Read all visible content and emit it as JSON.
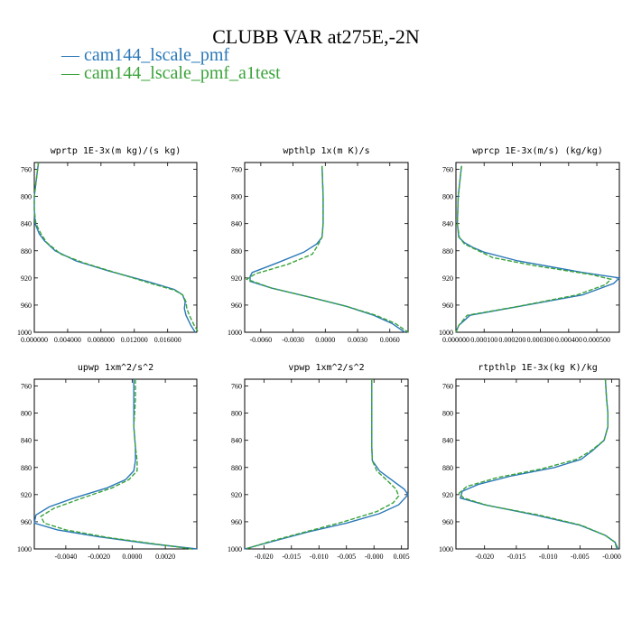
{
  "title": "CLUBB VAR at275E,-2N",
  "legend": [
    {
      "label": "— cam144_lscale_pmf",
      "color": "#2a78b8"
    },
    {
      "label": "— cam144_lscale_pmf_a1test",
      "color": "#3aa33a"
    }
  ],
  "chart_data": [
    {
      "type": "line",
      "title": "wprtp  1E-3x(m kg)/(s kg)",
      "ylim": [
        1000,
        750
      ],
      "yticks": [
        1000,
        960,
        920,
        880,
        840,
        800,
        760
      ],
      "xlim": [
        0,
        0.0195
      ],
      "xticks": [
        0,
        0.004,
        0.008,
        0.012,
        0.016
      ],
      "xtick_labels": [
        "0.000000",
        "0.004000",
        "0.008000",
        "0.012000",
        "0.016000"
      ],
      "series": [
        {
          "name": "cam144_lscale_pmf",
          "points": [
            [
              0.0005,
              750
            ],
            [
              0.0002,
              780
            ],
            [
              0,
              800
            ],
            [
              0,
              820
            ],
            [
              0.0001,
              840
            ],
            [
              0.0006,
              855
            ],
            [
              0.0012,
              865
            ],
            [
              0.0025,
              880
            ],
            [
              0.005,
              895
            ],
            [
              0.009,
              910
            ],
            [
              0.0135,
              925
            ],
            [
              0.0168,
              937
            ],
            [
              0.0178,
              945
            ],
            [
              0.0181,
              955
            ],
            [
              0.018,
              965
            ],
            [
              0.0182,
              975
            ],
            [
              0.0188,
              990
            ],
            [
              0.0193,
              1000
            ]
          ]
        },
        {
          "name": "cam144_lscale_pmf_a1test",
          "points": [
            [
              0.0005,
              750
            ],
            [
              0.0002,
              780
            ],
            [
              0,
              800
            ],
            [
              0,
              820
            ],
            [
              0.0002,
              840
            ],
            [
              0.0008,
              855
            ],
            [
              0.0015,
              868
            ],
            [
              0.0032,
              885
            ],
            [
              0.006,
              898
            ],
            [
              0.0105,
              915
            ],
            [
              0.014,
              928
            ],
            [
              0.0168,
              938
            ],
            [
              0.0178,
              945
            ],
            [
              0.0182,
              955
            ],
            [
              0.0183,
              965
            ],
            [
              0.0186,
              975
            ],
            [
              0.0192,
              990
            ],
            [
              0.0197,
              1000
            ]
          ]
        }
      ]
    },
    {
      "type": "line",
      "title": "wpthlp  1x(m K)/s",
      "ylim": [
        1000,
        750
      ],
      "yticks": [
        1000,
        960,
        920,
        880,
        840,
        800,
        760
      ],
      "xlim": [
        -0.0075,
        0.0077
      ],
      "xticks": [
        -0.006,
        -0.003,
        0,
        0.003,
        0.006
      ],
      "xtick_labels": [
        "-0.0060",
        "-0.0030",
        "0.0000",
        "0.0030",
        "0.0060"
      ],
      "series": [
        {
          "name": "cam144_lscale_pmf",
          "points": [
            [
              -0.0003,
              755
            ],
            [
              -0.0002,
              800
            ],
            [
              -0.0002,
              840
            ],
            [
              -0.0003,
              860
            ],
            [
              -0.0008,
              870
            ],
            [
              -0.002,
              882
            ],
            [
              -0.0045,
              898
            ],
            [
              -0.0068,
              912
            ],
            [
              -0.007,
              918
            ],
            [
              -0.007,
              925
            ],
            [
              -0.005,
              935
            ],
            [
              -0.001,
              950
            ],
            [
              0.002,
              962
            ],
            [
              0.0045,
              975
            ],
            [
              0.0062,
              987
            ],
            [
              0.0074,
              1000
            ]
          ]
        },
        {
          "name": "cam144_lscale_pmf_a1test",
          "points": [
            [
              -0.0003,
              755
            ],
            [
              -0.0002,
              800
            ],
            [
              -0.0002,
              840
            ],
            [
              -0.0003,
              860
            ],
            [
              -0.0007,
              872
            ],
            [
              -0.0012,
              885
            ],
            [
              -0.0035,
              900
            ],
            [
              -0.0065,
              914
            ],
            [
              -0.0073,
              922
            ],
            [
              -0.005,
              935
            ],
            [
              -0.001,
              950
            ],
            [
              0.002,
              962
            ],
            [
              0.0047,
              975
            ],
            [
              0.0065,
              987
            ],
            [
              0.0077,
              1000
            ]
          ]
        }
      ]
    },
    {
      "type": "line",
      "title": "wprcp  1E-3x(m/s) (kg/kg)",
      "ylim": [
        1000,
        750
      ],
      "yticks": [
        1000,
        960,
        920,
        880,
        840,
        800,
        760
      ],
      "xlim": [
        0,
        0.00058
      ],
      "xticks": [
        0,
        0.0001,
        0.0002,
        0.0003,
        0.0004,
        0.0005
      ],
      "xtick_labels": [
        "0.000000",
        "0.000100",
        "0.000200",
        "0.000300",
        "0.000400",
        "0.000500"
      ],
      "series": [
        {
          "name": "cam144_lscale_pmf",
          "points": [
            [
              2e-05,
              755
            ],
            [
              8e-06,
              800
            ],
            [
              5e-06,
              840
            ],
            [
              1e-05,
              860
            ],
            [
              3e-05,
              868
            ],
            [
              6e-05,
              875
            ],
            [
              0.0001,
              882
            ],
            [
              0.00022,
              895
            ],
            [
              0.00045,
              912
            ],
            [
              0.00058,
              920
            ],
            [
              0.00056,
              928
            ],
            [
              0.00045,
              945
            ],
            [
              0.00025,
              960
            ],
            [
              5e-05,
              975
            ],
            [
              1e-05,
              990
            ],
            [
              0,
              1000
            ]
          ]
        },
        {
          "name": "cam144_lscale_pmf_a1test",
          "points": [
            [
              2e-05,
              755
            ],
            [
              8e-06,
              800
            ],
            [
              5e-06,
              840
            ],
            [
              1.2e-05,
              860
            ],
            [
              3e-05,
              870
            ],
            [
              7e-05,
              878
            ],
            [
              0.00013,
              890
            ],
            [
              0.00028,
              902
            ],
            [
              0.00048,
              915
            ],
            [
              0.00055,
              922
            ],
            [
              0.00053,
              930
            ],
            [
              0.00043,
              945
            ],
            [
              0.00022,
              962
            ],
            [
              4e-05,
              975
            ],
            [
              1e-05,
              990
            ],
            [
              0,
              1000
            ]
          ]
        }
      ]
    },
    {
      "type": "line",
      "title": "upwp  1xm^2/s^2",
      "ylim": [
        1000,
        750
      ],
      "yticks": [
        1000,
        960,
        920,
        880,
        840,
        800,
        760
      ],
      "xlim": [
        -0.0059,
        0.0039
      ],
      "xticks": [
        -0.004,
        -0.002,
        0,
        0.002
      ],
      "xtick_labels": [
        "-0.0040",
        "-0.0020",
        "0.0000",
        "0.0020"
      ],
      "series": [
        {
          "name": "cam144_lscale_pmf",
          "points": [
            [
              0.0001,
              750
            ],
            [
              0.0001,
              780
            ],
            [
              0.0001,
              820
            ],
            [
              0.0002,
              850
            ],
            [
              0.0002,
              870
            ],
            [
              0.0001,
              885
            ],
            [
              -0.0004,
              898
            ],
            [
              -0.0015,
              910
            ],
            [
              -0.0035,
              925
            ],
            [
              -0.005,
              938
            ],
            [
              -0.0058,
              950
            ],
            [
              -0.0059,
              962
            ],
            [
              -0.0045,
              972
            ],
            [
              -0.002,
              982
            ],
            [
              0.001,
              992
            ],
            [
              0.0039,
              1000
            ]
          ]
        },
        {
          "name": "cam144_lscale_pmf_a1test",
          "points": [
            [
              0.0002,
              750
            ],
            [
              0.0002,
              780
            ],
            [
              0.0001,
              820
            ],
            [
              0.0002,
              850
            ],
            [
              0.0003,
              870
            ],
            [
              0.0003,
              885
            ],
            [
              -0.0002,
              898
            ],
            [
              -0.0012,
              910
            ],
            [
              -0.003,
              925
            ],
            [
              -0.0047,
              940
            ],
            [
              -0.0055,
              952
            ],
            [
              -0.0053,
              962
            ],
            [
              -0.004,
              972
            ],
            [
              -0.0015,
              983
            ],
            [
              0.0012,
              992
            ],
            [
              0.0036,
              1000
            ]
          ]
        }
      ]
    },
    {
      "type": "line",
      "title": "vpwp  1xm^2/s^2",
      "ylim": [
        1000,
        750
      ],
      "yticks": [
        1000,
        960,
        920,
        880,
        840,
        800,
        760
      ],
      "xlim": [
        -0.0235,
        0.0062
      ],
      "xticks": [
        -0.02,
        -0.015,
        -0.01,
        -0.005,
        0,
        0.005
      ],
      "xtick_labels": [
        "-0.020",
        "-0.015",
        "-0.010",
        "-0.005",
        "-0.000",
        "0.005"
      ],
      "series": [
        {
          "name": "cam144_lscale_pmf",
          "points": [
            [
              -0.0004,
              750
            ],
            [
              -0.0004,
              800
            ],
            [
              -0.0004,
              850
            ],
            [
              -0.0003,
              870
            ],
            [
              0.001,
              885
            ],
            [
              0.0035,
              900
            ],
            [
              0.0055,
              912
            ],
            [
              0.0062,
              920
            ],
            [
              0.0045,
              935
            ],
            [
              0.001,
              948
            ],
            [
              -0.005,
              962
            ],
            [
              -0.012,
              975
            ],
            [
              -0.018,
              988
            ],
            [
              -0.0235,
              1000
            ]
          ]
        },
        {
          "name": "cam144_lscale_pmf_a1test",
          "points": [
            [
              -0.0004,
              750
            ],
            [
              -0.0004,
              800
            ],
            [
              -0.0004,
              850
            ],
            [
              -0.0003,
              870
            ],
            [
              0.0005,
              885
            ],
            [
              0.0025,
              900
            ],
            [
              0.004,
              912
            ],
            [
              0.0045,
              922
            ],
            [
              0.0035,
              932
            ],
            [
              0.0005,
              945
            ],
            [
              -0.0055,
              960
            ],
            [
              -0.0125,
              975
            ],
            [
              -0.0185,
              988
            ],
            [
              -0.0233,
              1000
            ]
          ]
        }
      ]
    },
    {
      "type": "line",
      "title": "rtpthlp  1E-3x(kg K)/kg",
      "ylim": [
        1000,
        750
      ],
      "yticks": [
        1000,
        960,
        920,
        880,
        840,
        800,
        760
      ],
      "xlim": [
        -0.0245,
        0.0012
      ],
      "xticks": [
        -0.02,
        -0.015,
        -0.01,
        -0.005,
        0
      ],
      "xtick_labels": [
        "-0.020",
        "-0.015",
        "-0.010",
        "-0.005",
        "-0.000"
      ],
      "series": [
        {
          "name": "cam144_lscale_pmf",
          "points": [
            [
              -0.001,
              750
            ],
            [
              -0.0008,
              780
            ],
            [
              -0.0006,
              800
            ],
            [
              -0.0006,
              820
            ],
            [
              -0.0012,
              840
            ],
            [
              -0.003,
              855
            ],
            [
              -0.0048,
              868
            ],
            [
              -0.009,
              880
            ],
            [
              -0.016,
              893
            ],
            [
              -0.021,
              905
            ],
            [
              -0.0235,
              915
            ],
            [
              -0.0238,
              925
            ],
            [
              -0.02,
              935
            ],
            [
              -0.012,
              950
            ],
            [
              -0.005,
              965
            ],
            [
              -0.001,
              980
            ],
            [
              0.0005,
              990
            ],
            [
              0.001,
              1000
            ]
          ]
        },
        {
          "name": "cam144_lscale_pmf_a1test",
          "points": [
            [
              -0.001,
              750
            ],
            [
              -0.0008,
              780
            ],
            [
              -0.0006,
              800
            ],
            [
              -0.0006,
              820
            ],
            [
              -0.0012,
              840
            ],
            [
              -0.0032,
              855
            ],
            [
              -0.0055,
              868
            ],
            [
              -0.011,
              882
            ],
            [
              -0.018,
              895
            ],
            [
              -0.0228,
              908
            ],
            [
              -0.024,
              918
            ],
            [
              -0.0233,
              925
            ],
            [
              -0.0195,
              936
            ],
            [
              -0.0115,
              950
            ],
            [
              -0.0048,
              965
            ],
            [
              -0.001,
              980
            ],
            [
              0.0005,
              990
            ],
            [
              0.0008,
              1000
            ]
          ]
        }
      ]
    }
  ]
}
